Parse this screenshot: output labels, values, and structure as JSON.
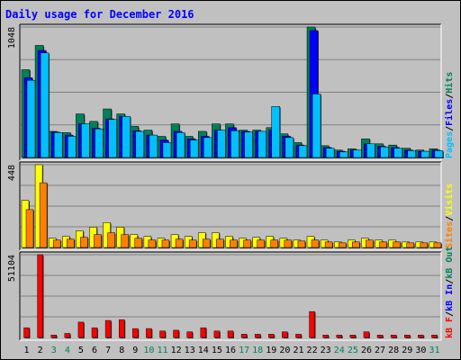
{
  "chart_data": {
    "type": "bar",
    "title": "Daily usage for December 2016",
    "categories": [
      "1",
      "2",
      "3",
      "4",
      "5",
      "6",
      "7",
      "8",
      "9",
      "10",
      "11",
      "12",
      "13",
      "14",
      "15",
      "16",
      "17",
      "18",
      "19",
      "20",
      "21",
      "22",
      "23",
      "24",
      "25",
      "26",
      "27",
      "28",
      "29",
      "30",
      "31"
    ],
    "weekend_days": [
      "3",
      "4",
      "10",
      "11",
      "17",
      "18",
      "24",
      "25",
      "31"
    ],
    "panels": [
      {
        "name": "hits-files-pages",
        "ymax": 1048,
        "ymax_label": "1048",
        "grid": true,
        "legend": [
          {
            "label": "Pages",
            "color": "#00c0ff"
          },
          {
            "label": "/",
            "color": "#000000"
          },
          {
            "label": "Files",
            "color": "#0000ff"
          },
          {
            "label": "/",
            "color": "#000000"
          },
          {
            "label": "Hits",
            "color": "#00805c"
          }
        ],
        "series": [
          {
            "name": "Hits",
            "color": "#00805c",
            "values": [
              705,
              900,
              210,
              200,
              350,
              290,
              390,
              350,
              250,
              220,
              170,
              270,
              170,
              210,
              270,
              270,
              220,
              220,
              240,
              190,
              120,
              1048,
              95,
              60,
              70,
              150,
              110,
              100,
              75,
              60,
              70
            ]
          },
          {
            "name": "Files",
            "color": "#0000ff",
            "values": [
              640,
              860,
              205,
              180,
              270,
              235,
              310,
              330,
              215,
              180,
              140,
              210,
              150,
              170,
              220,
              240,
              210,
              210,
              220,
              170,
              100,
              1020,
              80,
              50,
              60,
              110,
              90,
              80,
              60,
              50,
              60
            ]
          },
          {
            "name": "Pages",
            "color": "#00c0ff",
            "values": [
              620,
              840,
              200,
              170,
              270,
              230,
              305,
              330,
              210,
              180,
              120,
              200,
              140,
              160,
              220,
              215,
              205,
              210,
              410,
              160,
              95,
              510,
              75,
              45,
              60,
              110,
              85,
              75,
              55,
              50,
              55
            ]
          }
        ]
      },
      {
        "name": "visits-sites",
        "ymax": 448,
        "ymax_label": "448",
        "grid": true,
        "legend": [
          {
            "label": "Sites",
            "color": "#ff8000"
          },
          {
            "label": "/",
            "color": "#000000"
          },
          {
            "label": "Visits",
            "color": "#ffff00"
          }
        ],
        "series": [
          {
            "name": "Visits",
            "color": "#ffff00",
            "values": [
              255,
              448,
              50,
              60,
              90,
              110,
              135,
              110,
              70,
              60,
              50,
              70,
              60,
              80,
              80,
              60,
              50,
              55,
              60,
              50,
              40,
              60,
              40,
              30,
              40,
              50,
              40,
              40,
              30,
              30,
              30
            ]
          },
          {
            "name": "Sites",
            "color": "#ff8000",
            "values": [
              205,
              350,
              40,
              45,
              55,
              70,
              80,
              70,
              50,
              40,
              40,
              45,
              40,
              45,
              45,
              40,
              40,
              40,
              40,
              40,
              35,
              40,
              30,
              25,
              30,
              40,
              30,
              30,
              25,
              25,
              25
            ]
          }
        ]
      },
      {
        "name": "kbytes",
        "ymax": 51104,
        "ymax_label": "51104",
        "grid": true,
        "legend": [
          {
            "label": "kB F",
            "color": "#ff0000"
          },
          {
            "label": "/",
            "color": "#000000"
          },
          {
            "label": "kB In",
            "color": "#0000ff"
          },
          {
            "label": "/",
            "color": "#000000"
          },
          {
            "label": "kB Out",
            "color": "#00805c"
          }
        ],
        "series": [
          {
            "name": "kB F",
            "color": "#ff0000",
            "values": [
              6000,
              51104,
              1500,
              2500,
              9500,
              6000,
              10500,
              11000,
              5500,
              5500,
              4000,
              4500,
              3500,
              6000,
              4000,
              4000,
              2000,
              2000,
              2000,
              3500,
              2000,
              16000,
              1500,
              1500,
              1500,
              3500,
              1500,
              1500,
              1500,
              1500,
              1500
            ]
          }
        ]
      }
    ]
  }
}
